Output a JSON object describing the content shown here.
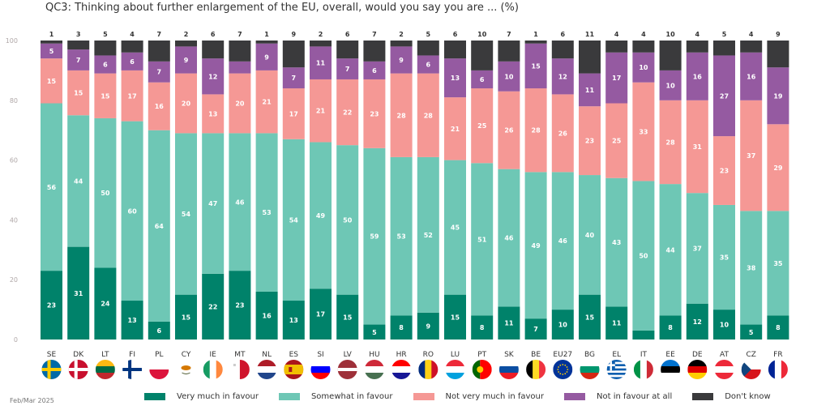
{
  "chart_data": {
    "type": "bar",
    "stacked": true,
    "title": "QC3: Thinking about further enlargement of the EU, overall, would you say you are ... (%)",
    "xlabel": "",
    "ylabel": "",
    "ylim": [
      0,
      100
    ],
    "yticks": [
      0,
      20,
      40,
      60,
      80,
      100
    ],
    "grid": false,
    "legend_position": "bottom",
    "footnote": "Feb/Mar 2025",
    "categories": [
      "SE",
      "DK",
      "LT",
      "FI",
      "PL",
      "CY",
      "IE",
      "MT",
      "NL",
      "ES",
      "SI",
      "LV",
      "HU",
      "HR",
      "RO",
      "LU",
      "PT",
      "SK",
      "BE",
      "EU27",
      "BG",
      "EL",
      "IT",
      "EE",
      "DE",
      "AT",
      "CZ",
      "FR"
    ],
    "series": [
      {
        "name": "Very much in favour",
        "color": "#00826a",
        "values": [
          23,
          31,
          24,
          13,
          6,
          15,
          22,
          23,
          16,
          13,
          17,
          15,
          5,
          8,
          9,
          15,
          8,
          11,
          7,
          10,
          15,
          11,
          3,
          8,
          12,
          10,
          5,
          8
        ],
        "labeled": [
          true,
          true,
          true,
          true,
          true,
          true,
          true,
          true,
          true,
          true,
          true,
          true,
          true,
          true,
          true,
          true,
          true,
          true,
          true,
          true,
          true,
          true,
          false,
          true,
          true,
          true,
          true,
          true
        ]
      },
      {
        "name": "Somewhat in favour",
        "color": "#6ec7b5",
        "values": [
          56,
          44,
          50,
          60,
          64,
          54,
          47,
          46,
          53,
          54,
          49,
          50,
          59,
          53,
          52,
          45,
          51,
          46,
          49,
          46,
          40,
          43,
          50,
          44,
          37,
          35,
          38,
          35
        ],
        "labeled": [
          true,
          true,
          true,
          true,
          true,
          true,
          true,
          true,
          true,
          true,
          true,
          true,
          true,
          true,
          true,
          true,
          true,
          true,
          true,
          true,
          true,
          true,
          true,
          true,
          true,
          true,
          true,
          true
        ]
      },
      {
        "name": "Not very much in favour",
        "color": "#f59895",
        "values": [
          15,
          15,
          15,
          17,
          16,
          20,
          13,
          20,
          21,
          17,
          21,
          22,
          23,
          28,
          28,
          21,
          25,
          26,
          28,
          26,
          23,
          25,
          33,
          28,
          31,
          23,
          37,
          29
        ],
        "labeled": [
          true,
          true,
          true,
          true,
          true,
          true,
          true,
          true,
          true,
          true,
          true,
          true,
          true,
          true,
          true,
          true,
          true,
          true,
          true,
          true,
          true,
          true,
          true,
          true,
          true,
          true,
          true,
          true
        ]
      },
      {
        "name": "Not in favour at all",
        "color": "#955aa1",
        "values": [
          5,
          7,
          6,
          6,
          7,
          9,
          12,
          4,
          9,
          7,
          11,
          7,
          6,
          9,
          6,
          13,
          6,
          10,
          15,
          12,
          11,
          17,
          10,
          10,
          16,
          27,
          16,
          19
        ],
        "labeled": [
          true,
          true,
          true,
          true,
          true,
          true,
          true,
          false,
          true,
          true,
          true,
          true,
          true,
          true,
          true,
          true,
          true,
          true,
          true,
          true,
          true,
          true,
          true,
          true,
          true,
          true,
          true,
          true
        ]
      },
      {
        "name": "Don't know",
        "color": "#3a3a3c",
        "values": [
          1,
          3,
          5,
          4,
          7,
          2,
          6,
          7,
          1,
          9,
          2,
          6,
          7,
          2,
          5,
          6,
          10,
          7,
          1,
          6,
          11,
          4,
          4,
          10,
          4,
          5,
          4,
          9
        ],
        "labeled_above": true
      }
    ],
    "flags": {
      "SE": {
        "type": "nordic",
        "colors": [
          "#006aa7",
          "#fecc00"
        ]
      },
      "DK": {
        "type": "nordic",
        "colors": [
          "#c8102e",
          "#ffffff"
        ]
      },
      "LT": {
        "type": "h3",
        "colors": [
          "#fdb913",
          "#006a44",
          "#c1272d"
        ]
      },
      "FI": {
        "type": "nordic",
        "colors": [
          "#ffffff",
          "#003580"
        ]
      },
      "PL": {
        "type": "h2",
        "colors": [
          "#ffffff",
          "#dc143c"
        ]
      },
      "CY": {
        "type": "cy",
        "colors": [
          "#ffffff",
          "#d57800"
        ]
      },
      "IE": {
        "type": "v3",
        "colors": [
          "#169b62",
          "#ffffff",
          "#ff883e"
        ]
      },
      "MT": {
        "type": "v2",
        "colors": [
          "#ffffff",
          "#cf142b"
        ]
      },
      "NL": {
        "type": "h3",
        "colors": [
          "#ae1c28",
          "#ffffff",
          "#21468b"
        ]
      },
      "ES": {
        "type": "es",
        "colors": [
          "#aa151b",
          "#f1bf00"
        ]
      },
      "SI": {
        "type": "h3",
        "colors": [
          "#ffffff",
          "#0000ff",
          "#ff0000"
        ]
      },
      "LV": {
        "type": "lv",
        "colors": [
          "#9e3039",
          "#ffffff"
        ]
      },
      "HU": {
        "type": "h3",
        "colors": [
          "#ce2939",
          "#ffffff",
          "#477050"
        ]
      },
      "HR": {
        "type": "h3",
        "colors": [
          "#ff0000",
          "#ffffff",
          "#171796"
        ]
      },
      "RO": {
        "type": "v3",
        "colors": [
          "#002b7f",
          "#fcd116",
          "#ce1126"
        ]
      },
      "LU": {
        "type": "h3",
        "colors": [
          "#ed2939",
          "#ffffff",
          "#00a1de"
        ]
      },
      "PT": {
        "type": "pt",
        "colors": [
          "#006600",
          "#ff0000"
        ]
      },
      "SK": {
        "type": "h3",
        "colors": [
          "#ffffff",
          "#0b4ea2",
          "#ee1c25"
        ]
      },
      "BE": {
        "type": "v3",
        "colors": [
          "#000000",
          "#fdda24",
          "#ef3340"
        ]
      },
      "EU27": {
        "type": "eu",
        "colors": [
          "#003399",
          "#ffcc00"
        ]
      },
      "BG": {
        "type": "h3",
        "colors": [
          "#ffffff",
          "#00966e",
          "#d62612"
        ]
      },
      "EL": {
        "type": "el",
        "colors": [
          "#0d5eaf",
          "#ffffff"
        ]
      },
      "IT": {
        "type": "v3",
        "colors": [
          "#009246",
          "#ffffff",
          "#ce2b37"
        ]
      },
      "EE": {
        "type": "h3",
        "colors": [
          "#0072ce",
          "#000000",
          "#ffffff"
        ]
      },
      "DE": {
        "type": "h3",
        "colors": [
          "#000000",
          "#dd0000",
          "#ffce00"
        ]
      },
      "AT": {
        "type": "h3",
        "colors": [
          "#ed2939",
          "#ffffff",
          "#ed2939"
        ]
      },
      "CZ": {
        "type": "cz",
        "colors": [
          "#ffffff",
          "#d7141a",
          "#11457e"
        ]
      },
      "FR": {
        "type": "v3",
        "colors": [
          "#002395",
          "#ffffff",
          "#ed2939"
        ]
      }
    }
  }
}
